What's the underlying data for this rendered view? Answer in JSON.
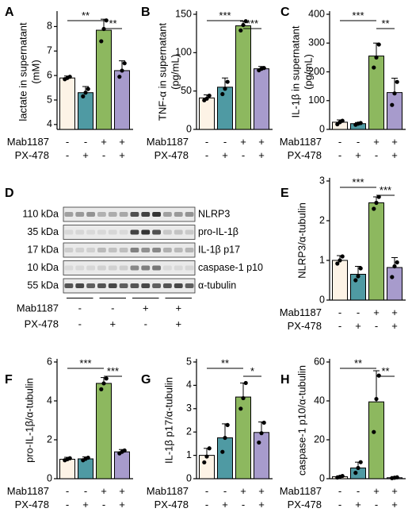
{
  "colors": {
    "g1": "#fdf3e6",
    "g2": "#4f9aa3",
    "g3": "#8db85f",
    "g4": "#a79bcc",
    "axis": "#000000",
    "blot_bg": "#eaeaea",
    "band": "#2a2a2a"
  },
  "conditions": {
    "row1_label": "Mab1187",
    "row2_label": "PX-478",
    "row1": [
      "-",
      "-",
      "+",
      "+"
    ],
    "row2": [
      "-",
      "+",
      "-",
      "+"
    ]
  },
  "chart_data": [
    {
      "panel": "A",
      "type": "bar",
      "ylabel": "lactate in supernatant (mM)",
      "ylabel_lines": [
        "lactate in supernatant",
        "(mM)"
      ],
      "ylim": [
        3.8,
        8.5
      ],
      "yticks": [
        "4",
        "5",
        "6",
        "7",
        "8"
      ],
      "ytick_values": [
        4,
        5,
        6,
        7,
        8
      ],
      "values": [
        5.9,
        5.3,
        7.85,
        6.2
      ],
      "err": [
        0.08,
        0.25,
        0.45,
        0.4
      ],
      "points": [
        [
          5.85,
          5.9,
          5.95
        ],
        [
          5.15,
          5.3,
          5.45
        ],
        [
          7.4,
          7.9,
          8.25
        ],
        [
          5.95,
          6.2,
          6.5
        ]
      ],
      "sig": [
        {
          "from": 0,
          "to": 2,
          "label": "**"
        },
        {
          "from": 2,
          "to": 3,
          "label": "**"
        }
      ]
    },
    {
      "panel": "B",
      "type": "bar",
      "ylabel": "TNF-α in supernatant (pg/mL)",
      "ylabel_lines": [
        "TNF-α in supernatant",
        "(pg/mL)"
      ],
      "ylim": [
        0,
        150
      ],
      "yticks": [
        "0",
        "50",
        "100",
        "150"
      ],
      "ytick_values": [
        0,
        50,
        100,
        150
      ],
      "values": [
        41,
        55,
        135,
        79
      ],
      "err": [
        4,
        12,
        6,
        3
      ],
      "points": [
        [
          38,
          40,
          44
        ],
        [
          46,
          53,
          62
        ],
        [
          129,
          136,
          141
        ],
        [
          77,
          79,
          80
        ]
      ],
      "sig": [
        {
          "from": 0,
          "to": 2,
          "label": "***"
        },
        {
          "from": 2,
          "to": 3,
          "label": "***"
        }
      ]
    },
    {
      "panel": "C",
      "type": "bar",
      "ylabel": "IL-1β in supernatant (pg/mL)",
      "ylabel_lines": [
        "IL-1β in supernatant",
        "(pg/mL)"
      ],
      "ylim": [
        0,
        400
      ],
      "yticks": [
        "0",
        "100",
        "200",
        "300",
        "400"
      ],
      "ytick_values": [
        0,
        100,
        200,
        300,
        400
      ],
      "values": [
        25,
        20,
        255,
        128
      ],
      "err": [
        8,
        4,
        45,
        50
      ],
      "points": [
        [
          18,
          25,
          30
        ],
        [
          16,
          20,
          22
        ],
        [
          215,
          250,
          295
        ],
        [
          85,
          125,
          165
        ]
      ],
      "sig": [
        {
          "from": 0,
          "to": 2,
          "label": "***"
        },
        {
          "from": 2,
          "to": 3,
          "label": "**"
        }
      ]
    },
    {
      "panel": "E",
      "type": "bar",
      "ylabel": "NLRP3/α-tubulin",
      "ylabel_lines": [
        "NLRP3/α-tubulin"
      ],
      "ylim": [
        0,
        3
      ],
      "yticks": [
        "0",
        "1",
        "2",
        "3"
      ],
      "ytick_values": [
        0,
        1,
        2,
        3
      ],
      "values": [
        1.0,
        0.65,
        2.45,
        0.82
      ],
      "err": [
        0.12,
        0.2,
        0.15,
        0.25
      ],
      "points": [
        [
          0.92,
          1.0,
          1.1
        ],
        [
          0.5,
          0.6,
          0.8
        ],
        [
          2.3,
          2.45,
          2.6
        ],
        [
          0.58,
          0.85,
          0.95
        ]
      ],
      "sig": [
        {
          "from": 0,
          "to": 2,
          "label": "***"
        },
        {
          "from": 2,
          "to": 3,
          "label": "***"
        }
      ]
    },
    {
      "panel": "F",
      "type": "bar",
      "ylabel": "pro-IL-1β/α-tubulin",
      "ylabel_lines": [
        "pro-IL-1β/α-tubulin"
      ],
      "ylim": [
        0,
        6
      ],
      "yticks": [
        "0",
        "2",
        "4",
        "6"
      ],
      "ytick_values": [
        0,
        2,
        4,
        6
      ],
      "values": [
        1.0,
        1.02,
        4.9,
        1.38
      ],
      "err": [
        0.1,
        0.1,
        0.3,
        0.12
      ],
      "points": [
        [
          0.95,
          1.0,
          1.05
        ],
        [
          0.95,
          1.02,
          1.08
        ],
        [
          4.6,
          4.9,
          5.15
        ],
        [
          1.3,
          1.38,
          1.45
        ]
      ],
      "sig": [
        {
          "from": 0,
          "to": 2,
          "label": "***"
        },
        {
          "from": 2,
          "to": 3,
          "label": "***"
        }
      ]
    },
    {
      "panel": "G",
      "type": "bar",
      "ylabel": "IL-1β p17/α-tubulin",
      "ylabel_lines": [
        "IL-1β p17/α-tubulin"
      ],
      "ylim": [
        0,
        5
      ],
      "yticks": [
        "0",
        "1",
        "2",
        "3",
        "4",
        "5"
      ],
      "ytick_values": [
        0,
        1,
        2,
        3,
        4,
        5
      ],
      "values": [
        1.0,
        1.75,
        3.5,
        1.98
      ],
      "err": [
        0.3,
        0.6,
        0.6,
        0.45
      ],
      "points": [
        [
          0.7,
          0.95,
          1.3
        ],
        [
          1.15,
          1.75,
          2.3
        ],
        [
          3.0,
          3.45,
          4.1
        ],
        [
          1.55,
          1.95,
          2.4
        ]
      ],
      "sig": [
        {
          "from": 0,
          "to": 2,
          "label": "**"
        },
        {
          "from": 2,
          "to": 3,
          "label": "*"
        }
      ]
    },
    {
      "panel": "H",
      "type": "bar",
      "ylabel": "caspase-1 p10/α-tubulin",
      "ylabel_lines": [
        "caspase-1 p10/α-tubulin"
      ],
      "ylim": [
        0,
        60
      ],
      "yticks": [
        "0",
        "20",
        "40",
        "60"
      ],
      "ytick_values": [
        0,
        20,
        40,
        60
      ],
      "values": [
        1.0,
        5.5,
        39.5,
        0.5
      ],
      "err": [
        0.5,
        3,
        16,
        0.3
      ],
      "points": [
        [
          0.6,
          1.0,
          1.4
        ],
        [
          3.0,
          5.5,
          8.5
        ],
        [
          24,
          41,
          53
        ],
        [
          0.3,
          0.5,
          0.7
        ]
      ],
      "sig": [
        {
          "from": 0,
          "to": 2,
          "label": "**"
        },
        {
          "from": 2,
          "to": 3,
          "label": "**"
        }
      ]
    }
  ],
  "blot": {
    "panel": "D",
    "rows": [
      {
        "mw": "110 kDa",
        "name": "NLRP3",
        "intensity": [
          0.45,
          0.35,
          0.95,
          0.45
        ]
      },
      {
        "mw": "35 kDa",
        "name": "pro-IL-1β",
        "intensity": [
          0.1,
          0.1,
          0.95,
          0.2
        ]
      },
      {
        "mw": "17 kDa",
        "name": "IL-1β p17",
        "intensity": [
          0.15,
          0.25,
          0.55,
          0.3
        ]
      },
      {
        "mw": "10 kDa",
        "name": "caspase-1 p10",
        "intensity": [
          0.1,
          0.15,
          0.6,
          0.1
        ]
      },
      {
        "mw": "55 kDa",
        "name": "α-tubulin",
        "intensity": [
          0.85,
          0.85,
          0.85,
          0.85
        ]
      }
    ]
  }
}
